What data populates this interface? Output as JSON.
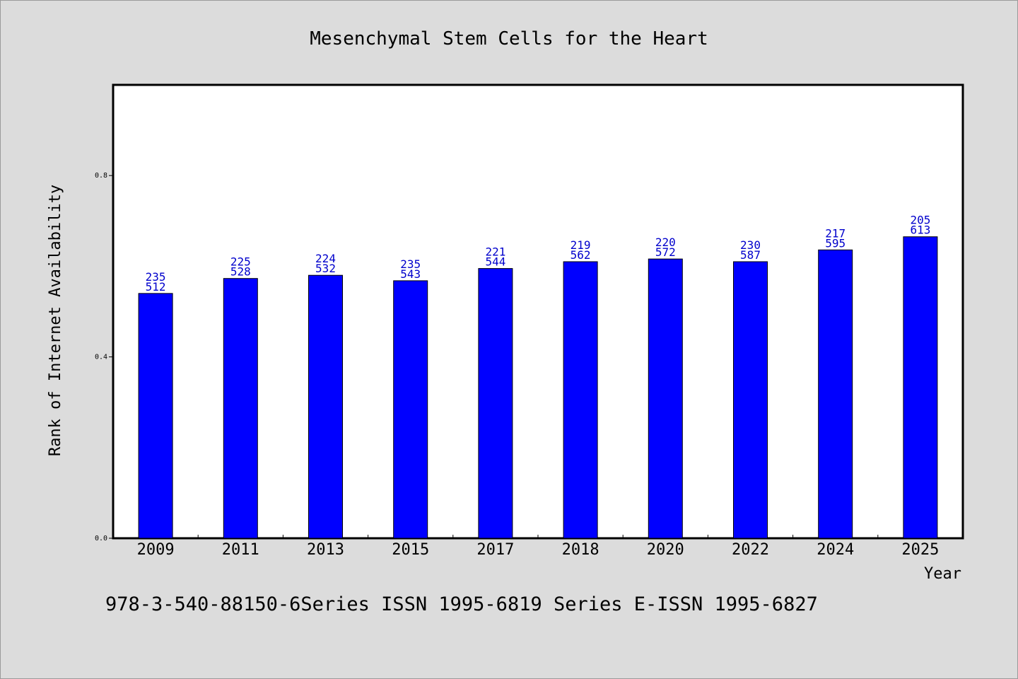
{
  "chart_data": {
    "type": "bar",
    "title": "Mesenchymal Stem Cells for the Heart",
    "xlabel": "Year",
    "ylabel": "Rank of Internet Availability",
    "categories": [
      "2009",
      "2011",
      "2013",
      "2015",
      "2017",
      "2018",
      "2020",
      "2022",
      "2024",
      "2025"
    ],
    "values": [
      0.54,
      0.573,
      0.58,
      0.568,
      0.595,
      0.61,
      0.616,
      0.61,
      0.636,
      0.665
    ],
    "bar_labels": [
      [
        "235",
        "512"
      ],
      [
        "225",
        "528"
      ],
      [
        "224",
        "532"
      ],
      [
        "235",
        "543"
      ],
      [
        "221",
        "544"
      ],
      [
        "219",
        "562"
      ],
      [
        "220",
        "572"
      ],
      [
        "230",
        "587"
      ],
      [
        "217",
        "595"
      ],
      [
        "205",
        "613"
      ]
    ],
    "ylim": [
      0,
      1.0
    ],
    "yticks": [
      0.0,
      0.4,
      0.8
    ],
    "ytick_labels": [
      "0.0",
      "0.4",
      "0.8"
    ],
    "grid": false,
    "bar_color": "#0000ff",
    "label_color": "#0000cc"
  },
  "footer": "978-3-540-88150-6Series ISSN 1995-6819 Series E-ISSN 1995-6827",
  "colors": {
    "page_background": "#dcdcdc",
    "plot_background": "#ffffff"
  }
}
